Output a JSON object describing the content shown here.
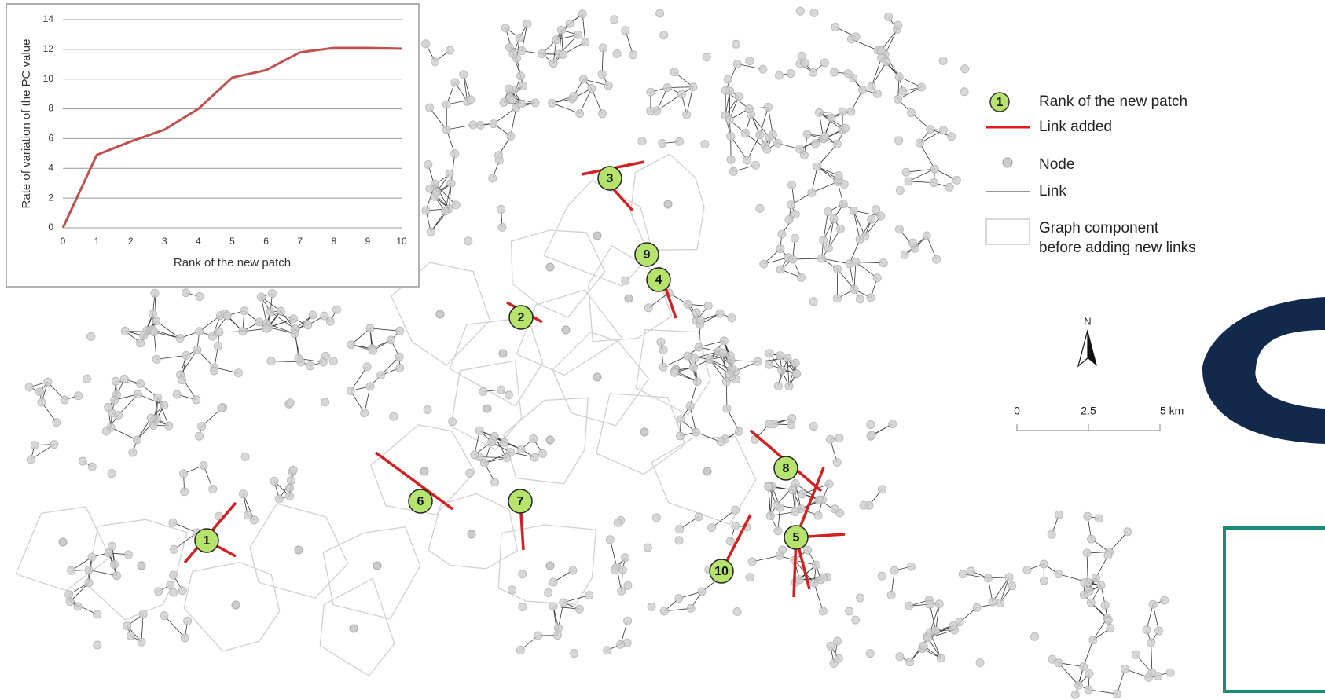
{
  "chart_data": {
    "type": "line",
    "x_label": "Rank of the new patch",
    "y_label": "Rate of variation of the PC value",
    "x": [
      0,
      1,
      2,
      3,
      4,
      5,
      6,
      7,
      8,
      9,
      10
    ],
    "values": [
      0,
      4.9,
      5.8,
      6.6,
      8.0,
      10.1,
      10.6,
      11.8,
      12.1,
      12.1,
      12.05
    ],
    "color": "#c0504d",
    "xlim": [
      0,
      10
    ],
    "xticks": [
      0,
      1,
      2,
      3,
      4,
      5,
      6,
      7,
      8,
      9,
      10
    ],
    "ylim": [
      0,
      14
    ],
    "yticks": [
      0,
      2,
      4,
      6,
      8,
      10,
      12,
      14
    ],
    "grid": true
  },
  "map": {
    "patches": [
      "1",
      "2",
      "3",
      "4",
      "5",
      "6",
      "7",
      "8",
      "9",
      "10"
    ],
    "legend": {
      "symbol": "1",
      "items": [
        "Rank of the new patch",
        "Link added",
        "Node",
        "Link",
        "Graph component",
        "before adding new links"
      ]
    },
    "north": "N",
    "scale": [
      "0",
      "2.5",
      "5 km"
    ]
  }
}
